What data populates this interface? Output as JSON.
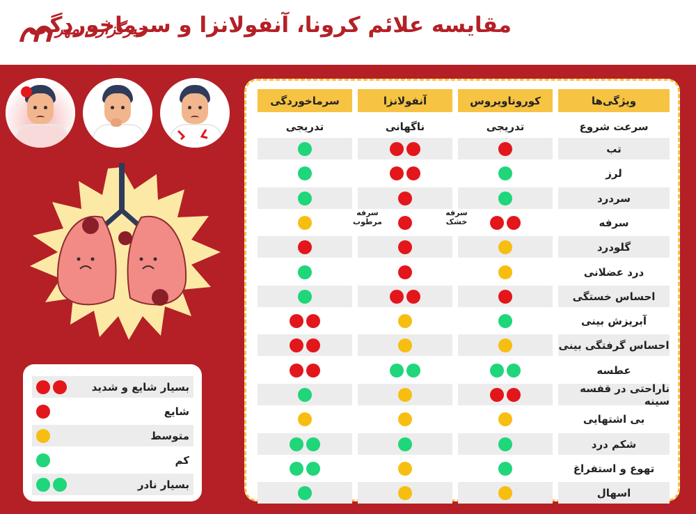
{
  "header": {
    "title": "مقایسه علائم کرونا، آنفولانزا و سرماخوردگی",
    "logo_text": "خبرگزاری مهر"
  },
  "colors": {
    "background": "#b42026",
    "header_bg": "#ffffff",
    "table_header": "#f6c342",
    "red": "#e3161b",
    "yellow": "#f7be12",
    "green": "#1fd67a"
  },
  "table": {
    "columns": [
      "ویژگی‌ها",
      "کوروناویروس",
      "آنفولانزا",
      "سرماخوردگی"
    ],
    "onset": {
      "label": "سرعت شروع",
      "corona": "تدریجی",
      "flu": "ناگهانی",
      "cold": "تدریجی"
    },
    "rows": [
      {
        "label": "تب",
        "corona": "red1",
        "flu": "red2",
        "cold": "green1"
      },
      {
        "label": "لرز",
        "corona": "green1",
        "flu": "red2",
        "cold": "green1"
      },
      {
        "label": "سردرد",
        "corona": "green1",
        "flu": "red1",
        "cold": "green1"
      },
      {
        "label": "سرفه",
        "corona": "red2",
        "flu": "red1",
        "cold": "yellow"
      },
      {
        "label": "گلودرد",
        "corona": "yellow",
        "flu": "red1",
        "cold": "red1"
      },
      {
        "label": "درد عضلانی",
        "corona": "yellow",
        "flu": "red1",
        "cold": "green1"
      },
      {
        "label": "احساس خستگی",
        "corona": "red1",
        "flu": "red2",
        "cold": "green1"
      },
      {
        "label": "آبریزش بینی",
        "corona": "green1",
        "flu": "yellow",
        "cold": "red2"
      },
      {
        "label": "احساس گرفتگی بینی",
        "corona": "yellow",
        "flu": "yellow",
        "cold": "red2"
      },
      {
        "label": "عطسه",
        "corona": "green2",
        "flu": "green2",
        "cold": "red2"
      },
      {
        "label": "ناراحتی در قفسه سینه",
        "corona": "red2",
        "flu": "yellow",
        "cold": "green1"
      },
      {
        "label": "بی اشتهایی",
        "corona": "yellow",
        "flu": "yellow",
        "cold": "yellow"
      },
      {
        "label": "شکم درد",
        "corona": "green1",
        "flu": "green1",
        "cold": "green2"
      },
      {
        "label": "تهوع و استفراغ",
        "corona": "green1",
        "flu": "yellow",
        "cold": "green2"
      },
      {
        "label": "اسهال",
        "corona": "yellow",
        "flu": "yellow",
        "cold": "green1"
      }
    ],
    "notes": {
      "corona_cough": "سرفه خشک",
      "flu_cough_1": "سرفه",
      "flu_cough_2": "مرطوب"
    }
  },
  "legend": [
    {
      "label": "بسیار شایع و شدید",
      "level": "red2"
    },
    {
      "label": "شایع",
      "level": "red1"
    },
    {
      "label": "متوسط",
      "level": "yellow"
    },
    {
      "label": "کم",
      "level": "green1"
    },
    {
      "label": "بسیار نادر",
      "level": "green2"
    }
  ],
  "icons": [
    "mehr-logo-icon",
    "headache-face-icon",
    "cough-face-icon",
    "chest-pain-face-icon",
    "infected-lungs-icon"
  ]
}
